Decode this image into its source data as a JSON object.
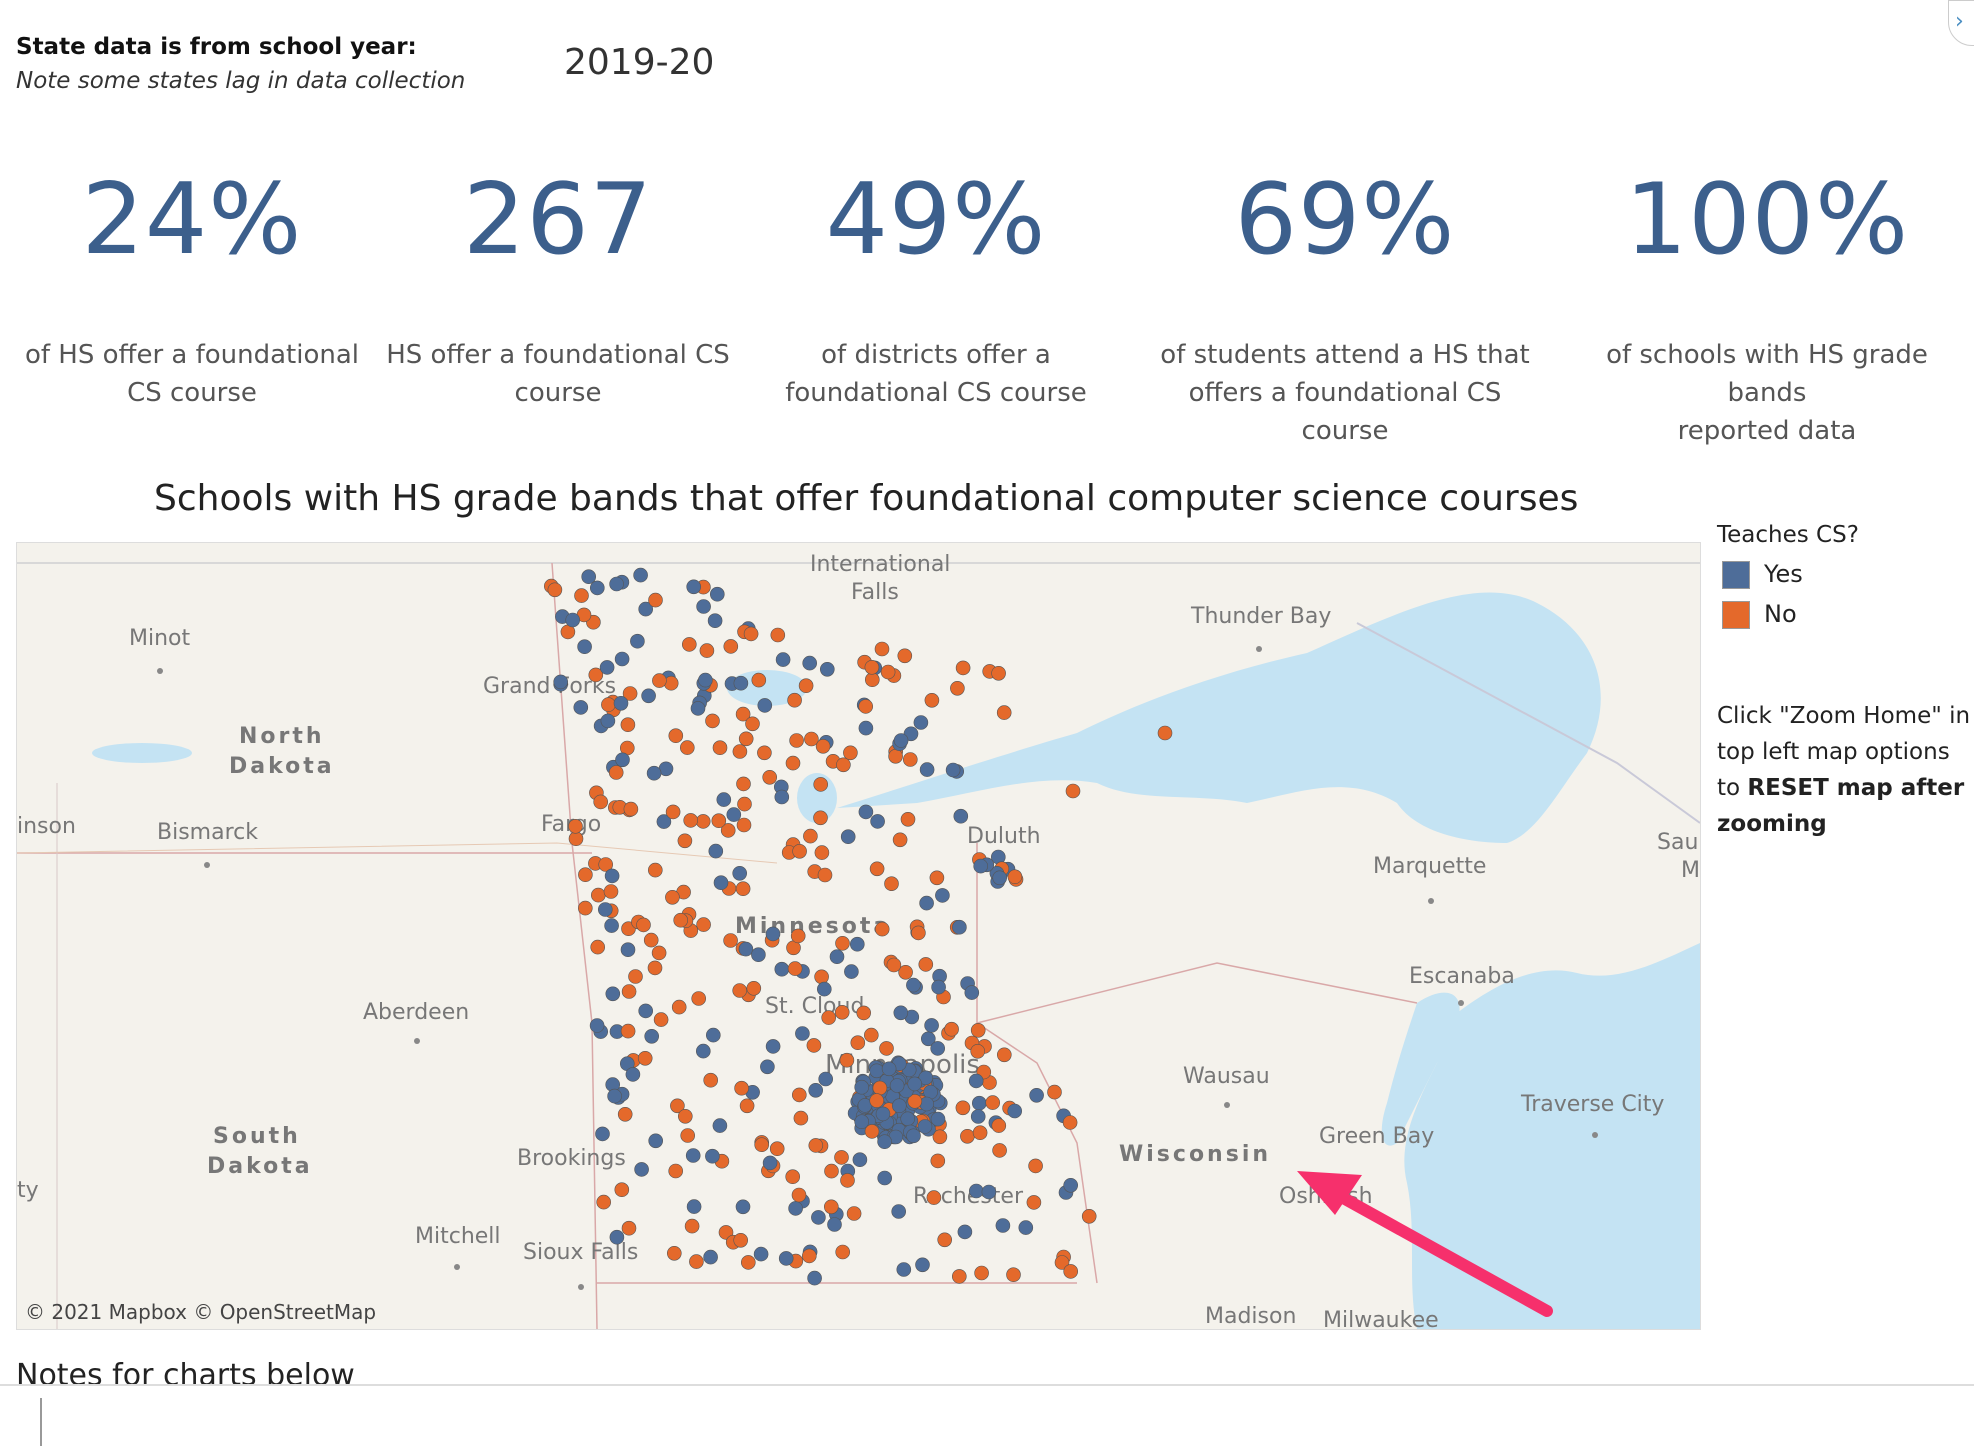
{
  "header": {
    "label": "State data is from school year:",
    "note": "Note some states lag in data collection",
    "school_year": "2019-20"
  },
  "kpis": [
    {
      "value": "24%",
      "label_line1": "of HS offer a foundational",
      "label_line2": "CS course"
    },
    {
      "value": "267",
      "label_line1": "HS offer a foundational CS",
      "label_line2": "course"
    },
    {
      "value": "49%",
      "label_line1": "of districts offer a",
      "label_line2": "foundational CS course"
    },
    {
      "value": "69%",
      "label_line1": "of students attend a HS that",
      "label_line2": "offers a foundational CS course"
    },
    {
      "value": "100%",
      "label_line1": "of schools with HS grade bands",
      "label_line2": "reported data"
    }
  ],
  "map": {
    "title": "Schools with HS grade bands that offer foundational computer science courses",
    "attribution": "© 2021 Mapbox  © OpenStreetMap",
    "place_labels": [
      {
        "text": "International",
        "id": "intl"
      },
      {
        "text": "Falls",
        "id": "falls"
      },
      {
        "text": "Thunder Bay",
        "id": "thunder"
      },
      {
        "text": "Minot",
        "id": "minot"
      },
      {
        "text": "Grand Forks",
        "id": "gforks"
      },
      {
        "text": "North",
        "id": "nd1"
      },
      {
        "text": "Dakota",
        "id": "nd2"
      },
      {
        "text": "inson",
        "id": "inson"
      },
      {
        "text": "Bismarck",
        "id": "bismarck"
      },
      {
        "text": "Fargo",
        "id": "fargo"
      },
      {
        "text": "Duluth",
        "id": "duluth"
      },
      {
        "text": "Marquette",
        "id": "marquette"
      },
      {
        "text": "Minnesota",
        "id": "mn"
      },
      {
        "text": "Escanaba",
        "id": "escanaba"
      },
      {
        "text": "Aberdeen",
        "id": "aberdeen"
      },
      {
        "text": "St. Cloud",
        "id": "stcloud"
      },
      {
        "text": "Minneapolis",
        "id": "mpls"
      },
      {
        "text": "Wausau",
        "id": "wausau"
      },
      {
        "text": "Traverse City",
        "id": "traverse"
      },
      {
        "text": "South",
        "id": "sd1"
      },
      {
        "text": "Dakota",
        "id": "sd2"
      },
      {
        "text": "Green Bay",
        "id": "greenbay"
      },
      {
        "text": "Wisconsin",
        "id": "wi"
      },
      {
        "text": "Brookings",
        "id": "brookings"
      },
      {
        "text": "Rochester",
        "id": "rochester"
      },
      {
        "text": "ty",
        "id": "ty"
      },
      {
        "text": "Oshkosh",
        "id": "oshkosh"
      },
      {
        "text": "Mitchell",
        "id": "mitchell"
      },
      {
        "text": "Sioux Falls",
        "id": "siouxfalls"
      },
      {
        "text": "Madison",
        "id": "madison"
      },
      {
        "text": "Milwaukee",
        "id": "milwaukee"
      },
      {
        "text": "Sau",
        "id": "sau"
      },
      {
        "text": "M",
        "id": "m"
      }
    ]
  },
  "legend": {
    "title": "Teaches CS?",
    "items": [
      {
        "label": "Yes",
        "color": "#4e6d99"
      },
      {
        "label": "No",
        "color": "#e4692b"
      }
    ]
  },
  "help": {
    "line1": "Click  \"Zoom Home\" in",
    "line2": "top left map options",
    "line3_prefix": "to ",
    "line3_bold": "RESET map after",
    "line4_bold": "zooming"
  },
  "notes_header": "Notes for charts below",
  "colors": {
    "kpi": "#3c5f8c",
    "yes": "#4e6d99",
    "no": "#e4692b",
    "water": "#c4e3f3",
    "land": "#f4f2ec",
    "arrow": "#f6306c"
  }
}
